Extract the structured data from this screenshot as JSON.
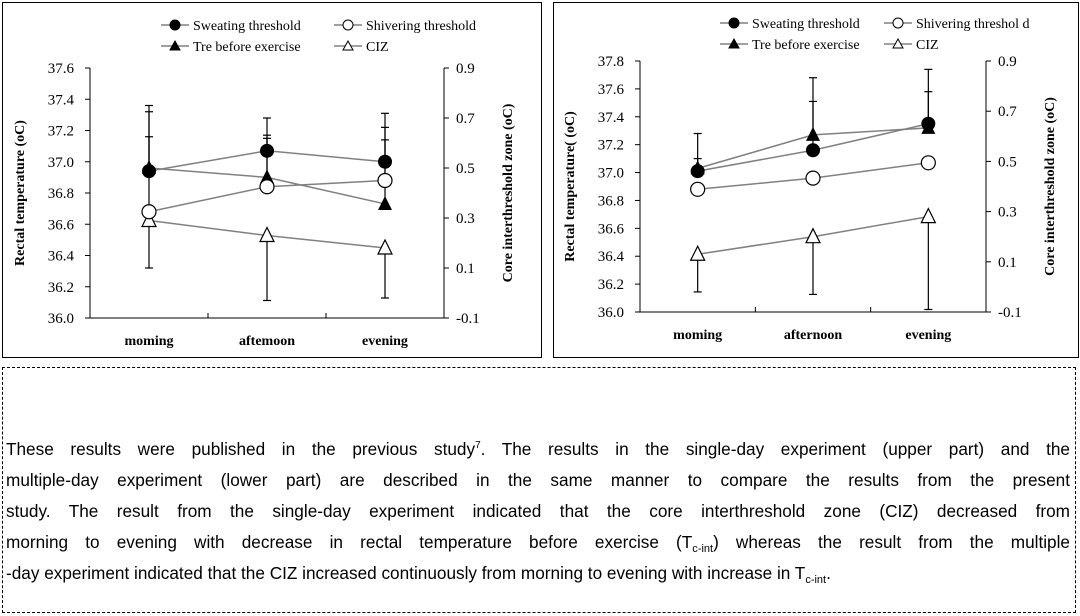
{
  "chart_data": [
    {
      "type": "line",
      "categories": [
        "moming",
        "aftemoon",
        "evening"
      ],
      "ylabel": "Rectal temperature (oC)",
      "y2label": "Core interthreshold zone (oC)",
      "ylim": [
        36.0,
        37.6
      ],
      "yticks": [
        "36.0",
        "36.2",
        "36.4",
        "36.6",
        "36.8",
        "37.0",
        "37.2",
        "37.4",
        "37.6"
      ],
      "y2lim": [
        -0.1,
        0.9
      ],
      "y2ticks": [
        "-0.1",
        "0.1",
        "0.3",
        "0.5",
        "0.7",
        "0.9"
      ],
      "grid": false,
      "legend_position": "top",
      "series": [
        {
          "name": "Sweating threshold",
          "axis": "left",
          "marker": "filled-circle",
          "values": [
            36.94,
            37.07,
            37.0
          ],
          "error_bar_end": [
            37.36,
            37.28,
            37.31
          ]
        },
        {
          "name": "Shivering threshold",
          "axis": "left",
          "marker": "open-circle",
          "values": [
            36.68,
            36.84,
            36.88
          ],
          "error_bar_end": [
            37.32,
            37.15,
            37.22
          ]
        },
        {
          "name": "Tre before exercise",
          "axis": "left",
          "marker": "filled-triangle",
          "values": [
            36.96,
            36.9,
            36.73
          ],
          "error_bar_end": [
            37.16,
            37.17,
            37.14
          ]
        },
        {
          "name": "CIZ",
          "axis": "right",
          "marker": "open-triangle",
          "values": [
            0.29,
            0.23,
            0.18
          ],
          "error_bar_end": [
            0.1,
            -0.03,
            -0.02
          ]
        }
      ]
    },
    {
      "type": "line",
      "categories": [
        "moming",
        "afternoon",
        "evening"
      ],
      "ylabel": "Rectal temperature( (oC)",
      "y2label": "Core interthreshold zone (oC)",
      "ylim": [
        36.0,
        37.8
      ],
      "yticks": [
        "36.0",
        "36.2",
        "36.4",
        "36.6",
        "36.8",
        "37.0",
        "37.2",
        "37.4",
        "37.6",
        "37.8"
      ],
      "y2lim": [
        -0.1,
        0.9
      ],
      "y2ticks": [
        "-0.1",
        "0.1",
        "0.3",
        "0.5",
        "0.7",
        "0.9"
      ],
      "grid": false,
      "legend_position": "top",
      "series": [
        {
          "name": "Sweating threshold",
          "axis": "left",
          "marker": "filled-circle",
          "values": [
            37.01,
            37.16,
            37.35
          ],
          "error_bar_end": [
            37.28,
            37.51,
            37.74
          ]
        },
        {
          "name": "Shivering threshold",
          "axis": "left",
          "marker": "open-circle",
          "values": [
            36.88,
            36.96,
            37.07
          ],
          "error_bar_end": [
            null,
            null,
            null
          ]
        },
        {
          "name": "Tre before exercise",
          "axis": "left",
          "marker": "filled-triangle",
          "values": [
            37.03,
            37.27,
            37.32
          ],
          "error_bar_end": [
            37.1,
            37.68,
            37.58
          ]
        },
        {
          "name": "CIZ",
          "axis": "right",
          "marker": "open-triangle",
          "values": [
            0.13,
            0.2,
            0.28
          ],
          "error_bar_end": [
            -0.02,
            -0.03,
            -0.09
          ]
        }
      ],
      "legend_labels": [
        "Sweating threshold",
        "Shivering threshol d",
        "Tre before exercise",
        "CIZ"
      ]
    }
  ],
  "paragraph": {
    "line1_a": "These results were published in the previous study",
    "line1_sup": "7",
    "line1_b": ". The results in the single-day experiment (upper part) and the",
    "line2": "multiple-day experiment (lower part) are described in the same manner to compare the results from the present",
    "line3": "study. The result from the single-day experiment indicated that the core interthreshold zone (CIZ) decreased from",
    "line4_a": "morning to evening with decrease in rectal temperature before exercise (T",
    "line4_sub": "c-int",
    "line4_b": ") whereas the result from the multiple",
    "line5_a": "-day experiment indicated that the CIZ increased continuously from morning to evening with increase in T",
    "line5_sub": "c-int",
    "line5_b": "."
  },
  "colors": {
    "line": "#808080",
    "marker": "#000000",
    "text": "#000000"
  }
}
